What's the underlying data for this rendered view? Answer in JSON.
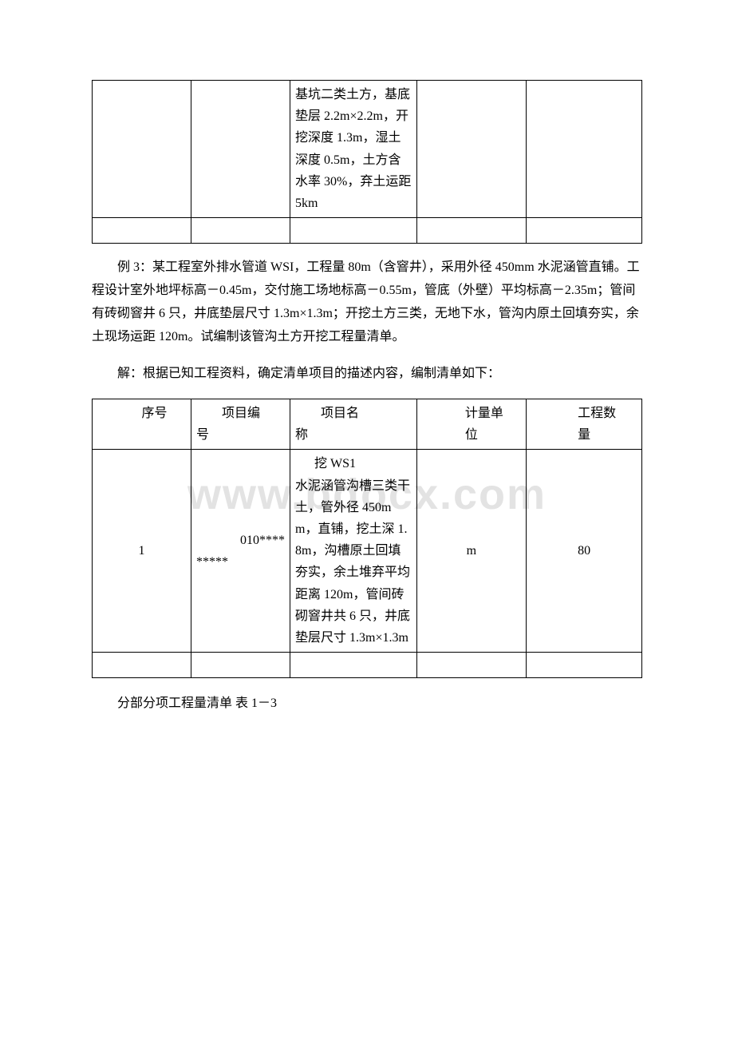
{
  "watermark": "www.bdocx.com",
  "table1": {
    "row1": {
      "c3": "基坑二类土方，基底垫层 2.2m×2.2m，开挖深度 1.3m，湿土深度 0.5m，土方含水率 30%，弃土运距 5km"
    }
  },
  "para1": "例 3：某工程室外排水管道 WSI，工程量 80m（含窨井），采用外径 450mm 水泥涵管直铺。工程设计室外地坪标高－0.45m，交付施工场地标高－0.55m，管底（外壁）平均标高－2.35m；管间有砖砌窨井 6 只，井底垫层尺寸 1.3m×1.3m；开挖土方三类，无地下水，管沟内原土回填夯实，余土现场运距 120m。试编制该管沟土方开挖工程量清单。",
  "para2": "解：根据已知工程资料，确定清单项目的描述内容，编制清单如下：",
  "table2": {
    "headers": {
      "h1": "序号",
      "h2a": "项目编",
      "h2b": "号",
      "h3a": "项目名",
      "h3b": "称",
      "h4a": "计量单",
      "h4b": "位",
      "h5a": "工程数",
      "h5b": "量"
    },
    "row1": {
      "c1": "1",
      "c2a": "010****",
      "c2b": "*****",
      "c3first": "挖 WS1",
      "c3rest": "水泥涵管沟槽三类干土，管外径 450mm，直铺，挖土深 1.8m，沟槽原土回填夯实，余土堆弃平均距离 120m，管间砖砌窨井共 6 只，井底垫层尺寸 1.3m×1.3m",
      "c4": "m",
      "c5": "80"
    }
  },
  "para3": "分部分项工程量清单 表 1－3"
}
